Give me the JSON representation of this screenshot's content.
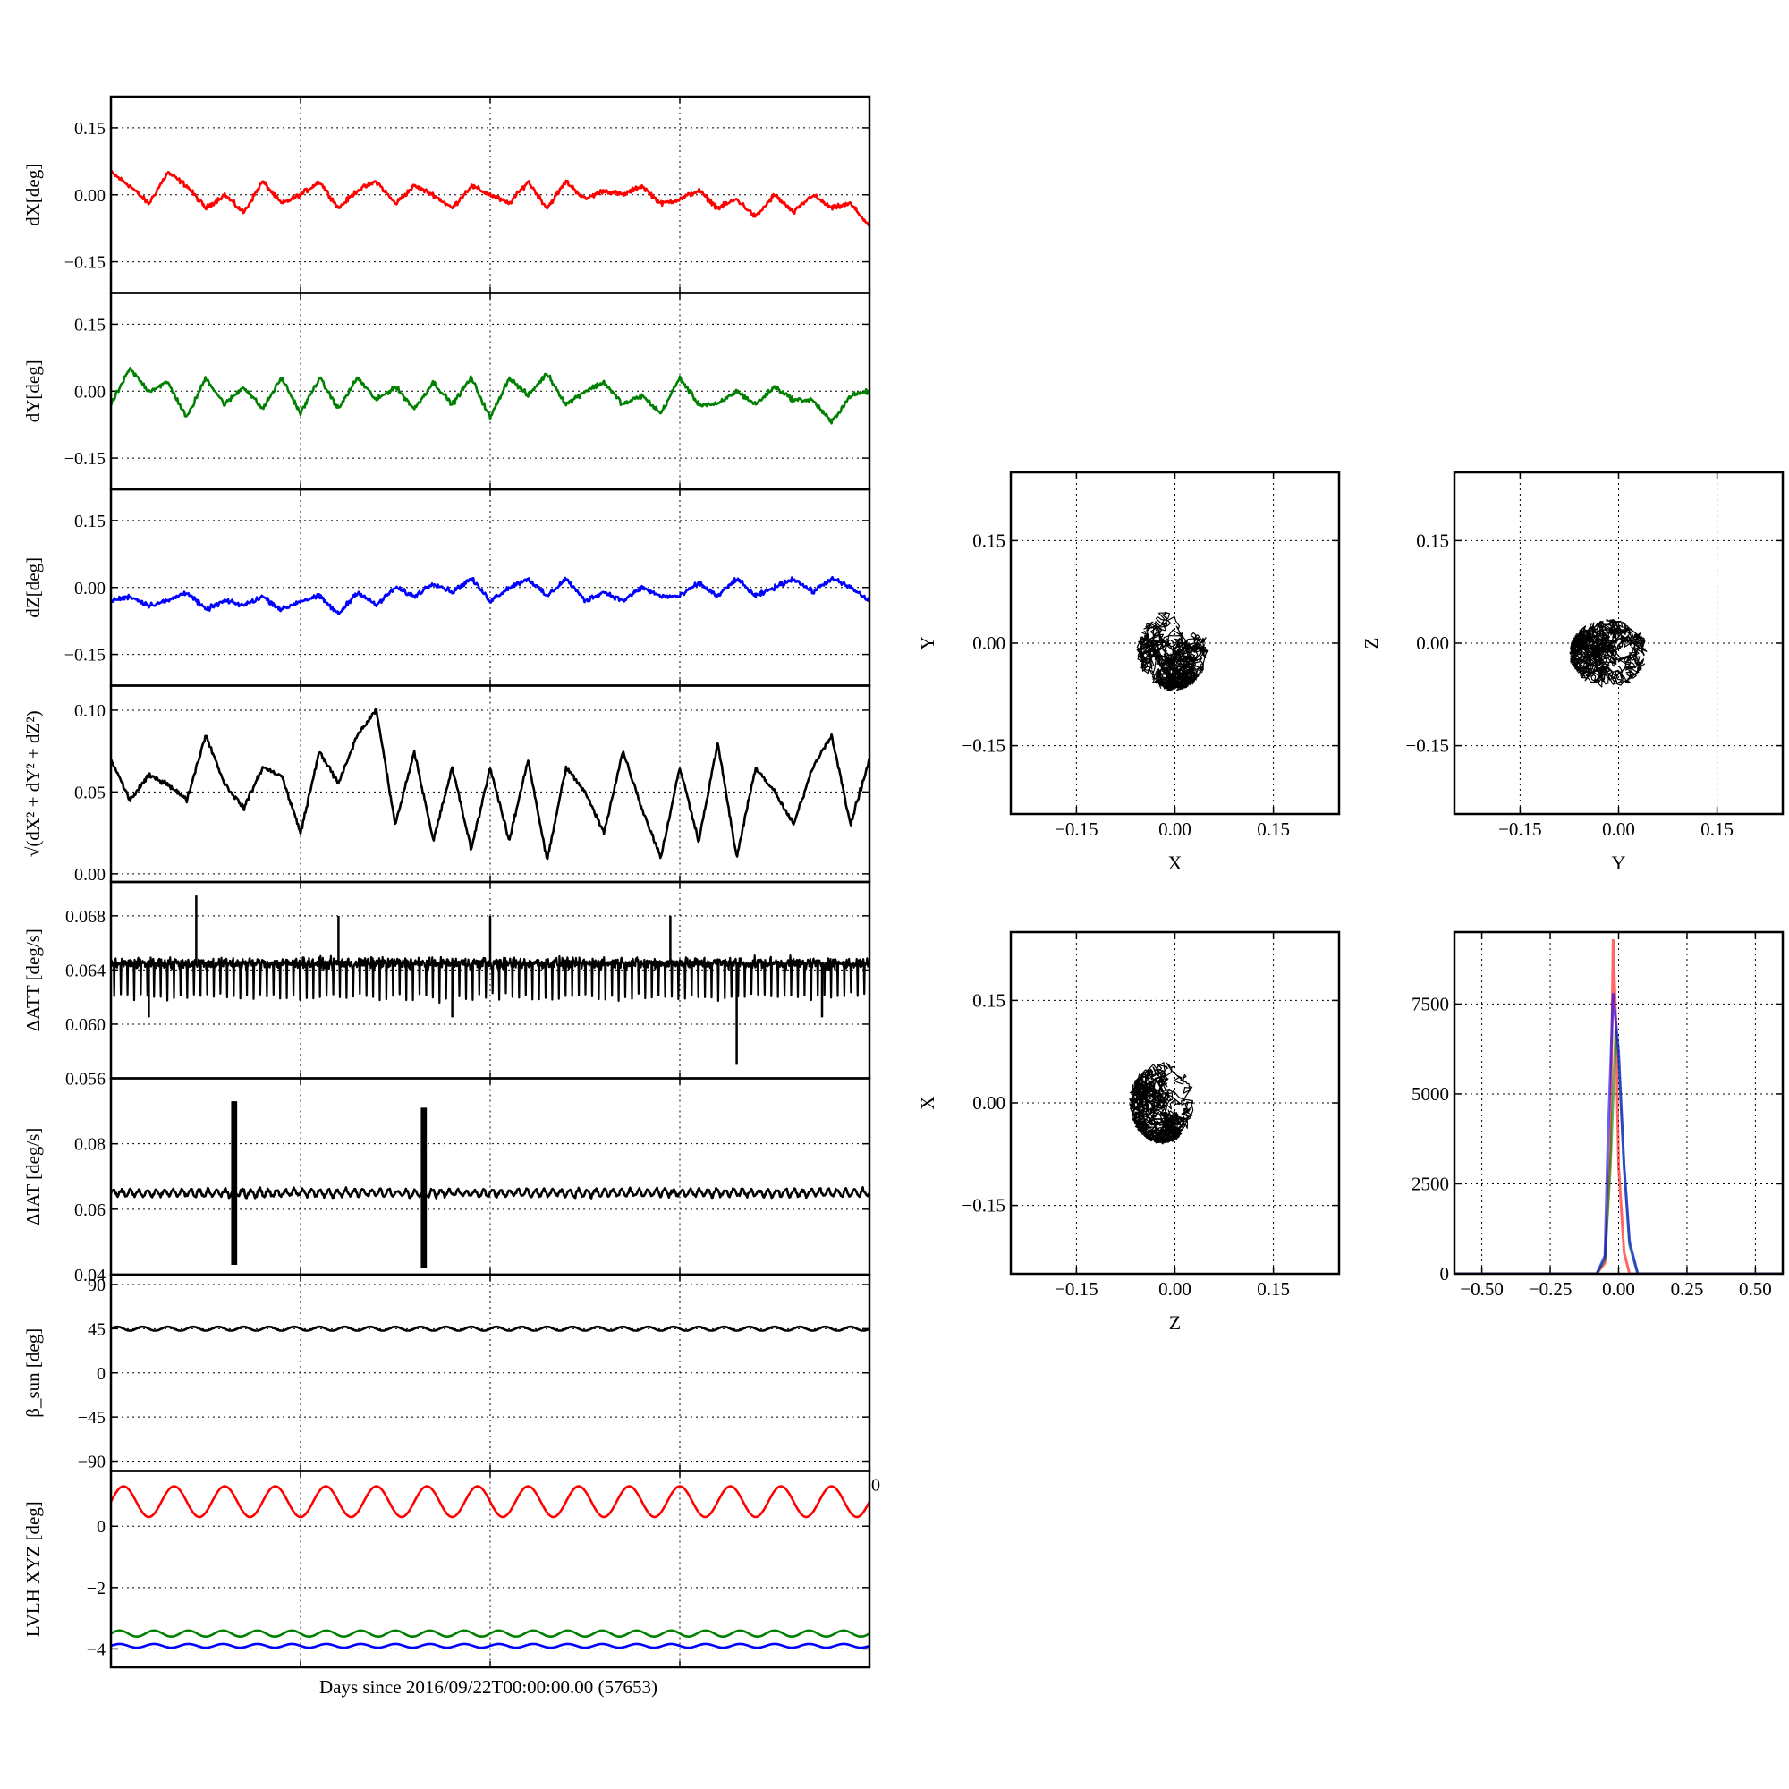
{
  "figure": {
    "xlabel": "Days since 2016/09/22T00:00:00.00 (57653)"
  },
  "chart_data": [
    {
      "id": "dx",
      "type": "line",
      "ylabel": "dX[deg]",
      "ylim": [
        -0.22,
        0.22
      ],
      "yticks": [
        "0.15",
        "0.00",
        "−0.15"
      ],
      "yticks_values": [
        0.15,
        0.0,
        -0.15
      ],
      "xlim": [
        0,
        4
      ],
      "grid": true,
      "series": [
        {
          "color": "#ff0000",
          "x": [
            0,
            0.1,
            0.2,
            0.3,
            0.4,
            0.5,
            0.6,
            0.7,
            0.8,
            0.9,
            1.0,
            1.1,
            1.2,
            1.3,
            1.4,
            1.5,
            1.6,
            1.7,
            1.8,
            1.9,
            2.0,
            2.1,
            2.2,
            2.3,
            2.4,
            2.5,
            2.6,
            2.7,
            2.8,
            2.9,
            3.0,
            3.1,
            3.2,
            3.3,
            3.4,
            3.5,
            3.6,
            3.7,
            3.8,
            3.9,
            4.0
          ],
          "y": [
            0.05,
            0.02,
            -0.02,
            0.05,
            0.02,
            -0.03,
            0.0,
            -0.04,
            0.03,
            -0.02,
            0.0,
            0.03,
            -0.03,
            0.01,
            0.03,
            -0.02,
            0.02,
            0.0,
            -0.03,
            0.02,
            0.0,
            -0.02,
            0.03,
            -0.03,
            0.03,
            -0.01,
            0.01,
            0.0,
            0.02,
            -0.02,
            -0.01,
            0.01,
            -0.03,
            -0.01,
            -0.05,
            0.0,
            -0.04,
            0.0,
            -0.03,
            -0.02,
            -0.07
          ]
        }
      ]
    },
    {
      "id": "dy",
      "type": "line",
      "ylabel": "dY[deg]",
      "ylim": [
        -0.22,
        0.22
      ],
      "yticks": [
        "0.15",
        "0.00",
        "−0.15"
      ],
      "yticks_values": [
        0.15,
        0.0,
        -0.15
      ],
      "xlim": [
        0,
        4
      ],
      "grid": true,
      "series": [
        {
          "color": "#008000",
          "x": [
            0,
            0.1,
            0.2,
            0.3,
            0.4,
            0.5,
            0.6,
            0.7,
            0.8,
            0.9,
            1.0,
            1.1,
            1.2,
            1.3,
            1.4,
            1.5,
            1.6,
            1.7,
            1.8,
            1.9,
            2.0,
            2.1,
            2.2,
            2.3,
            2.4,
            2.5,
            2.6,
            2.7,
            2.8,
            2.9,
            3.0,
            3.1,
            3.2,
            3.3,
            3.4,
            3.5,
            3.6,
            3.7,
            3.8,
            3.9,
            4.0
          ],
          "y": [
            -0.03,
            0.05,
            0.0,
            0.02,
            -0.06,
            0.03,
            -0.03,
            0.01,
            -0.04,
            0.03,
            -0.05,
            0.03,
            -0.04,
            0.03,
            -0.02,
            0.01,
            -0.04,
            0.02,
            -0.03,
            0.03,
            -0.06,
            0.03,
            -0.01,
            0.04,
            -0.03,
            0.0,
            0.02,
            -0.03,
            -0.01,
            -0.05,
            0.03,
            -0.03,
            -0.03,
            0.0,
            -0.03,
            0.01,
            -0.02,
            -0.02,
            -0.07,
            -0.01,
            0.0
          ]
        }
      ]
    },
    {
      "id": "dz",
      "type": "line",
      "ylabel": "dZ[deg]",
      "ylim": [
        -0.22,
        0.22
      ],
      "yticks": [
        "0.15",
        "0.00",
        "−0.15"
      ],
      "yticks_values": [
        0.15,
        0.0,
        -0.15
      ],
      "xlim": [
        0,
        4
      ],
      "grid": true,
      "series": [
        {
          "color": "#0000ff",
          "x": [
            0,
            0.1,
            0.2,
            0.3,
            0.4,
            0.5,
            0.6,
            0.7,
            0.8,
            0.9,
            1.0,
            1.1,
            1.2,
            1.3,
            1.4,
            1.5,
            1.6,
            1.7,
            1.8,
            1.9,
            2.0,
            2.1,
            2.2,
            2.3,
            2.4,
            2.5,
            2.6,
            2.7,
            2.8,
            2.9,
            3.0,
            3.1,
            3.2,
            3.3,
            3.4,
            3.5,
            3.6,
            3.7,
            3.8,
            3.9,
            4.0
          ],
          "y": [
            -0.03,
            -0.02,
            -0.04,
            -0.03,
            -0.01,
            -0.05,
            -0.03,
            -0.04,
            -0.02,
            -0.05,
            -0.03,
            -0.02,
            -0.06,
            -0.01,
            -0.04,
            0.0,
            -0.02,
            0.01,
            -0.01,
            0.02,
            -0.03,
            0.0,
            0.02,
            -0.02,
            0.02,
            -0.03,
            -0.01,
            -0.03,
            0.0,
            -0.02,
            -0.02,
            0.01,
            -0.02,
            0.02,
            -0.02,
            0.0,
            0.02,
            -0.01,
            0.02,
            0.0,
            -0.03
          ]
        }
      ]
    },
    {
      "id": "dr",
      "type": "line",
      "ylabel": "√(dX² + dY² + dZ²)",
      "ylim": [
        -0.005,
        0.115
      ],
      "yticks": [
        "0.10",
        "0.05",
        "0.00"
      ],
      "yticks_values": [
        0.1,
        0.05,
        0.0
      ],
      "xlim": [
        0,
        4
      ],
      "grid": true,
      "series": [
        {
          "color": "#000000",
          "x": [
            0,
            0.1,
            0.2,
            0.3,
            0.4,
            0.5,
            0.6,
            0.7,
            0.8,
            0.9,
            1.0,
            1.1,
            1.2,
            1.3,
            1.4,
            1.5,
            1.6,
            1.7,
            1.8,
            1.9,
            2.0,
            2.1,
            2.2,
            2.3,
            2.4,
            2.5,
            2.6,
            2.7,
            2.8,
            2.9,
            3.0,
            3.1,
            3.2,
            3.3,
            3.4,
            3.5,
            3.6,
            3.7,
            3.8,
            3.9,
            4.0
          ],
          "y": [
            0.07,
            0.045,
            0.06,
            0.055,
            0.045,
            0.085,
            0.055,
            0.04,
            0.065,
            0.06,
            0.025,
            0.075,
            0.055,
            0.085,
            0.1,
            0.03,
            0.075,
            0.02,
            0.065,
            0.015,
            0.065,
            0.02,
            0.07,
            0.008,
            0.065,
            0.05,
            0.025,
            0.075,
            0.04,
            0.01,
            0.065,
            0.02,
            0.08,
            0.01,
            0.065,
            0.05,
            0.03,
            0.065,
            0.085,
            0.03,
            0.07
          ]
        }
      ]
    },
    {
      "id": "datt",
      "type": "line",
      "ylabel": "ΔATT [deg/s]",
      "ylim": [
        0.056,
        0.0705
      ],
      "yticks": [
        "0.068",
        "0.064",
        "0.060",
        "0.056"
      ],
      "yticks_values": [
        0.068,
        0.064,
        0.06,
        0.056
      ],
      "xlim": [
        0,
        4
      ],
      "grid": true,
      "series": [
        {
          "color": "#000000",
          "base": 0.0645,
          "dip": 0.062,
          "spikes_up": [
            [
              0.45,
              0.0695
            ],
            [
              1.2,
              0.068
            ],
            [
              2.0,
              0.068
            ],
            [
              2.95,
              0.068
            ]
          ],
          "spikes_down": [
            [
              0.2,
              0.0605
            ],
            [
              1.8,
              0.0605
            ],
            [
              3.3,
              0.057
            ],
            [
              3.75,
              0.0605
            ]
          ]
        }
      ]
    },
    {
      "id": "diat",
      "type": "line",
      "ylabel": "ΔIAT [deg/s]",
      "ylim": [
        0.04,
        0.1
      ],
      "yticks": [
        "0.08",
        "0.06",
        "0.04"
      ],
      "yticks_values": [
        0.08,
        0.06,
        0.04
      ],
      "xlim": [
        0,
        4
      ],
      "grid": true,
      "series": [
        {
          "color": "#000000",
          "base": 0.065,
          "bursts": [
            [
              0.65,
              0.043,
              0.093
            ],
            [
              1.65,
              0.042,
              0.091
            ]
          ]
        }
      ]
    },
    {
      "id": "beta",
      "type": "line",
      "ylabel": "β_sun [deg]",
      "ylim": [
        -100,
        100
      ],
      "yticks": [
        "90",
        "45",
        "0",
        "−45",
        "−90"
      ],
      "yticks_values": [
        90,
        45,
        0,
        -45,
        -90
      ],
      "xlim": [
        0,
        4
      ],
      "grid": true,
      "series": [
        {
          "color": "#000000",
          "mean": 45,
          "amplitude": 2,
          "cycles": 30
        }
      ]
    },
    {
      "id": "lvlh",
      "type": "line",
      "ylabel": "LVLH XYZ [deg]",
      "ylim": [
        -4.6,
        1.8
      ],
      "yticks": [
        "0",
        "−2",
        "−4"
      ],
      "yticks_values": [
        0,
        -2,
        -4
      ],
      "xlim": [
        0,
        4
      ],
      "grid": true,
      "stray_label": "0",
      "series": [
        {
          "color": "#ff0000",
          "mean": 0.8,
          "amplitude": 0.5,
          "cycles": 15
        },
        {
          "color": "#008000",
          "mean": -3.5,
          "amplitude": 0.1,
          "cycles": 22
        },
        {
          "color": "#0000ff",
          "mean": -3.9,
          "amplitude": 0.06,
          "cycles": 22
        }
      ]
    },
    {
      "id": "xy",
      "type": "scatter",
      "xlabel": "X",
      "ylabel": "Y",
      "xlim": [
        -0.25,
        0.25
      ],
      "ylim": [
        -0.25,
        0.25
      ],
      "xticks": [
        "−0.15",
        "0.00",
        "0.15"
      ],
      "xticks_values": [
        -0.15,
        0.0,
        0.15
      ],
      "yticks": [
        "0.15",
        "0.00",
        "−0.15"
      ],
      "yticks_values": [
        0.15,
        0.0,
        -0.15
      ],
      "grid": true,
      "cluster": {
        "cx": -0.003,
        "cy": -0.01,
        "rx": 0.055,
        "ry": 0.06,
        "color": "#000000"
      }
    },
    {
      "id": "zy",
      "type": "scatter",
      "xlabel": "Y",
      "ylabel": "Z",
      "xlim": [
        -0.25,
        0.25
      ],
      "ylim": [
        -0.25,
        0.25
      ],
      "xticks": [
        "−0.15",
        "0.00",
        "0.15"
      ],
      "xticks_values": [
        -0.15,
        0.0,
        0.15
      ],
      "yticks": [
        "0.15",
        "0.00",
        "−0.15"
      ],
      "yticks_values": [
        0.15,
        0.0,
        -0.15
      ],
      "grid": true,
      "cluster": {
        "cx": -0.015,
        "cy": -0.015,
        "rx": 0.06,
        "ry": 0.05,
        "color": "#000000"
      }
    },
    {
      "id": "xz",
      "type": "scatter",
      "xlabel": "Z",
      "ylabel": "X",
      "xlim": [
        -0.25,
        0.25
      ],
      "ylim": [
        -0.25,
        0.25
      ],
      "xticks": [
        "−0.15",
        "0.00",
        "0.15"
      ],
      "xticks_values": [
        -0.15,
        0.0,
        0.15
      ],
      "yticks": [
        "0.15",
        "0.00",
        "−0.15"
      ],
      "yticks_values": [
        0.15,
        0.0,
        -0.15
      ],
      "grid": true,
      "cluster": {
        "cx": -0.02,
        "cy": 0.0,
        "rx": 0.05,
        "ry": 0.06,
        "color": "#000000"
      }
    },
    {
      "id": "hist",
      "type": "line",
      "xlim": [
        -0.6,
        0.6
      ],
      "ylim": [
        0,
        9500
      ],
      "xticks": [
        "−0.50",
        "−0.25",
        "0.00",
        "0.25",
        "0.50"
      ],
      "xticks_values": [
        -0.5,
        -0.25,
        0.0,
        0.25,
        0.5
      ],
      "yticks": [
        "7500",
        "5000",
        "2500",
        "0"
      ],
      "yticks_values": [
        7500,
        5000,
        2500,
        0
      ],
      "grid": true,
      "series": [
        {
          "color": "#ff0000",
          "x": [
            -0.6,
            -0.08,
            -0.05,
            -0.03,
            -0.02,
            -0.01,
            0.0,
            0.02,
            0.04,
            0.6
          ],
          "y": [
            0,
            0,
            300,
            3500,
            9300,
            7000,
            3000,
            600,
            0,
            0
          ]
        },
        {
          "color": "#008000",
          "x": [
            -0.6,
            -0.08,
            -0.05,
            -0.03,
            -0.01,
            0.0,
            0.02,
            0.04,
            0.07,
            0.6
          ],
          "y": [
            0,
            0,
            400,
            3000,
            6800,
            6000,
            3000,
            800,
            0,
            0
          ]
        },
        {
          "color": "#0000ff",
          "x": [
            -0.6,
            -0.08,
            -0.05,
            -0.04,
            -0.02,
            0.0,
            0.02,
            0.04,
            0.07,
            0.6
          ],
          "y": [
            0,
            0,
            500,
            3500,
            7800,
            6200,
            3000,
            900,
            0,
            0
          ]
        }
      ]
    }
  ]
}
